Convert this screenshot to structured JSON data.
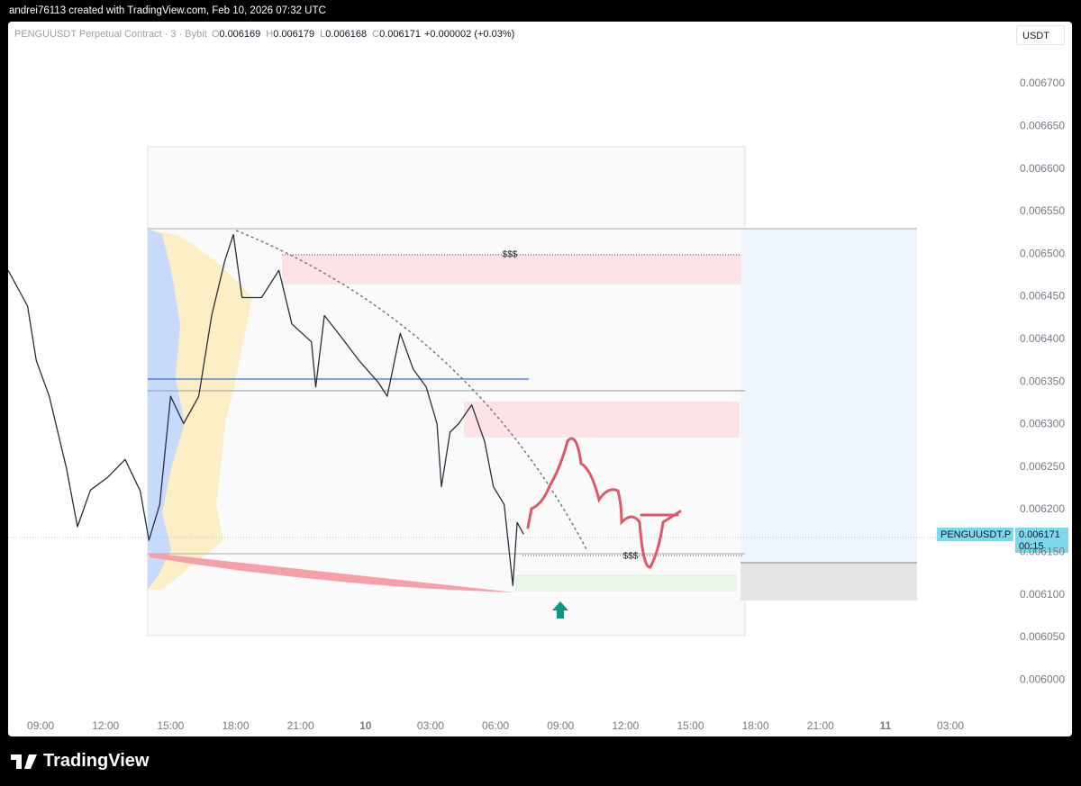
{
  "header": {
    "attribution": "andrei76113 created with TradingView.com, Feb 10, 2026 07:32 UTC",
    "symbol": "PENGUUSDT Perpetual Contract · 3 · Bybit",
    "ohlc": [
      {
        "key": "O",
        "value": "0.006169"
      },
      {
        "key": "H",
        "value": "0.006179"
      },
      {
        "key": "L",
        "value": "0.006168"
      },
      {
        "key": "C",
        "value": "0.006171"
      }
    ],
    "change": "+0.000002 (+0.03%)",
    "currency": "USDT"
  },
  "chart_data": {
    "type": "line",
    "color": "#2a2e39",
    "x": [
      7.5,
      8.4,
      8.8,
      9.4,
      10.2,
      10.7,
      11.3,
      12.1,
      12.9,
      13.6,
      14.0,
      14.5,
      15.0,
      15.6,
      16.3,
      16.9,
      17.5,
      17.9,
      18.3,
      19.2,
      20.0,
      20.6,
      21.5,
      21.7,
      22.1,
      22.9,
      23.7,
      24.6,
      25.0,
      25.6,
      26.2,
      26.8,
      27.3,
      27.5,
      27.9,
      28.3,
      28.9,
      29.5,
      29.9,
      30.4,
      30.8,
      31.0,
      31.3
    ],
    "values": [
      0.006481,
      0.006439,
      0.006375,
      0.006333,
      0.006248,
      0.00618,
      0.006223,
      0.006238,
      0.006259,
      0.006222,
      0.006164,
      0.006206,
      0.006333,
      0.006301,
      0.006333,
      0.006428,
      0.006492,
      0.006523,
      0.006449,
      0.006449,
      0.006481,
      0.006418,
      0.006397,
      0.006344,
      0.006428,
      0.006402,
      0.006375,
      0.006349,
      0.006333,
      0.006407,
      0.006365,
      0.006344,
      0.006301,
      0.006227,
      0.006291,
      0.006301,
      0.006323,
      0.00628,
      0.006227,
      0.006206,
      0.006111,
      0.006185,
      0.006171
    ],
    "xlim": [
      7.5,
      53.7
    ],
    "ylim": [
      0.005958,
      0.006773
    ],
    "xticks": [
      {
        "value": 9,
        "label": "09:00"
      },
      {
        "value": 12,
        "label": "12:00"
      },
      {
        "value": 15,
        "label": "15:00"
      },
      {
        "value": 18,
        "label": "18:00"
      },
      {
        "value": 21,
        "label": "21:00"
      },
      {
        "value": 24,
        "label": "10"
      },
      {
        "value": 27,
        "label": "03:00"
      },
      {
        "value": 30,
        "label": "06:00"
      },
      {
        "value": 33,
        "label": "09:00"
      },
      {
        "value": 36,
        "label": "12:00"
      },
      {
        "value": 39,
        "label": "15:00"
      },
      {
        "value": 42,
        "label": "18:00"
      },
      {
        "value": 45,
        "label": "21:00"
      },
      {
        "value": 48,
        "label": "11"
      },
      {
        "value": 51,
        "label": "03:00"
      }
    ],
    "yticks": [
      {
        "value": 0.006,
        "label": "0.006000"
      },
      {
        "value": 0.00605,
        "label": "0.006050"
      },
      {
        "value": 0.0061,
        "label": "0.006100"
      },
      {
        "value": 0.00615,
        "label": "0.006150"
      },
      {
        "value": 0.0062,
        "label": "0.006200"
      },
      {
        "value": 0.00625,
        "label": "0.006250"
      },
      {
        "value": 0.0063,
        "label": "0.006300"
      },
      {
        "value": 0.00635,
        "label": "0.006350"
      },
      {
        "value": 0.0064,
        "label": "0.006400"
      },
      {
        "value": 0.00645,
        "label": "0.006450"
      },
      {
        "value": 0.0065,
        "label": "0.006500"
      },
      {
        "value": 0.00655,
        "label": "0.006550"
      },
      {
        "value": 0.0066,
        "label": "0.006600"
      },
      {
        "value": 0.00665,
        "label": "0.006650"
      },
      {
        "value": 0.0067,
        "label": "0.006700"
      }
    ]
  },
  "annotations": [
    "$$$",
    "$$$"
  ],
  "price_tag": {
    "symbol": "PENGUUSDT.P",
    "price": "0.006171",
    "countdown": "00:15"
  },
  "footer": {
    "brand": "TradingView"
  }
}
